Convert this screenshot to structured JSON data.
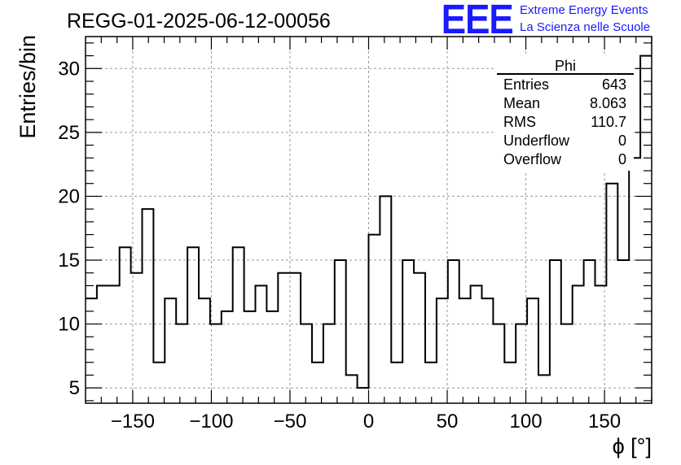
{
  "chart_data": {
    "type": "bar",
    "title": "REGG-01-2025-06-12-00056",
    "xlabel": "ϕ [°]",
    "ylabel": "Entries/bin",
    "xlim": [
      -180,
      180
    ],
    "ylim": [
      3.8,
      32.5
    ],
    "bin_width": 7.2,
    "bin_edges_start": -180,
    "values": [
      12,
      13,
      13,
      16,
      14,
      19,
      7,
      12,
      10,
      16,
      12,
      10,
      11,
      16,
      11,
      13,
      11,
      14,
      14,
      10,
      7,
      10,
      15,
      6,
      5,
      17,
      20,
      7,
      15,
      14,
      7,
      12,
      15,
      12,
      13,
      12,
      10,
      7,
      10,
      12,
      6,
      15,
      10,
      13,
      15,
      13,
      21,
      15,
      23,
      31
    ],
    "x_ticks": [
      -150,
      -100,
      -50,
      0,
      50,
      100,
      150
    ],
    "x_tick_labels": [
      "−150",
      "−100",
      "−50",
      "0",
      "50",
      "100",
      "150"
    ],
    "y_ticks": [
      5,
      10,
      15,
      20,
      25,
      30
    ],
    "y_tick_labels": [
      "5",
      "10",
      "15",
      "20",
      "25",
      "30"
    ],
    "grid": true,
    "stats_box": {
      "title": "Phi",
      "rows": [
        {
          "label": "Entries",
          "value": "643"
        },
        {
          "label": "Mean",
          "value": "8.063"
        },
        {
          "label": "RMS",
          "value": "110.7"
        },
        {
          "label": "Underflow",
          "value": "0"
        },
        {
          "label": "Overflow",
          "value": "0"
        }
      ]
    }
  },
  "logo": {
    "text": "EEE",
    "line1": "Extreme Energy Events",
    "line2": "La Scienza nelle Scuole",
    "color": "#1a1aff"
  }
}
